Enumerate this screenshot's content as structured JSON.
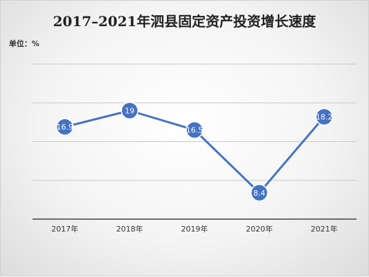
{
  "chart_data": {
    "type": "line",
    "title": "2017–2021年泗县固定资产投资增长速度",
    "unit_label": "单位：%",
    "categories": [
      "2017年",
      "2018年",
      "2019年",
      "2020年",
      "2021年"
    ],
    "series": [
      {
        "values": [
          16.9,
          19,
          16.5,
          8.4,
          18.2
        ],
        "data_labels": [
          "16.9",
          "19",
          "16.5",
          "8.4",
          "18.2"
        ]
      }
    ],
    "ylim": [
      5,
      25
    ],
    "gridlines": [
      10,
      15,
      20,
      25
    ],
    "grid": true,
    "legend": "none",
    "colors": {
      "line": "#4472C4",
      "marker": "#4472C4",
      "grid": "#c8c8c8",
      "axis": "#404040"
    }
  }
}
